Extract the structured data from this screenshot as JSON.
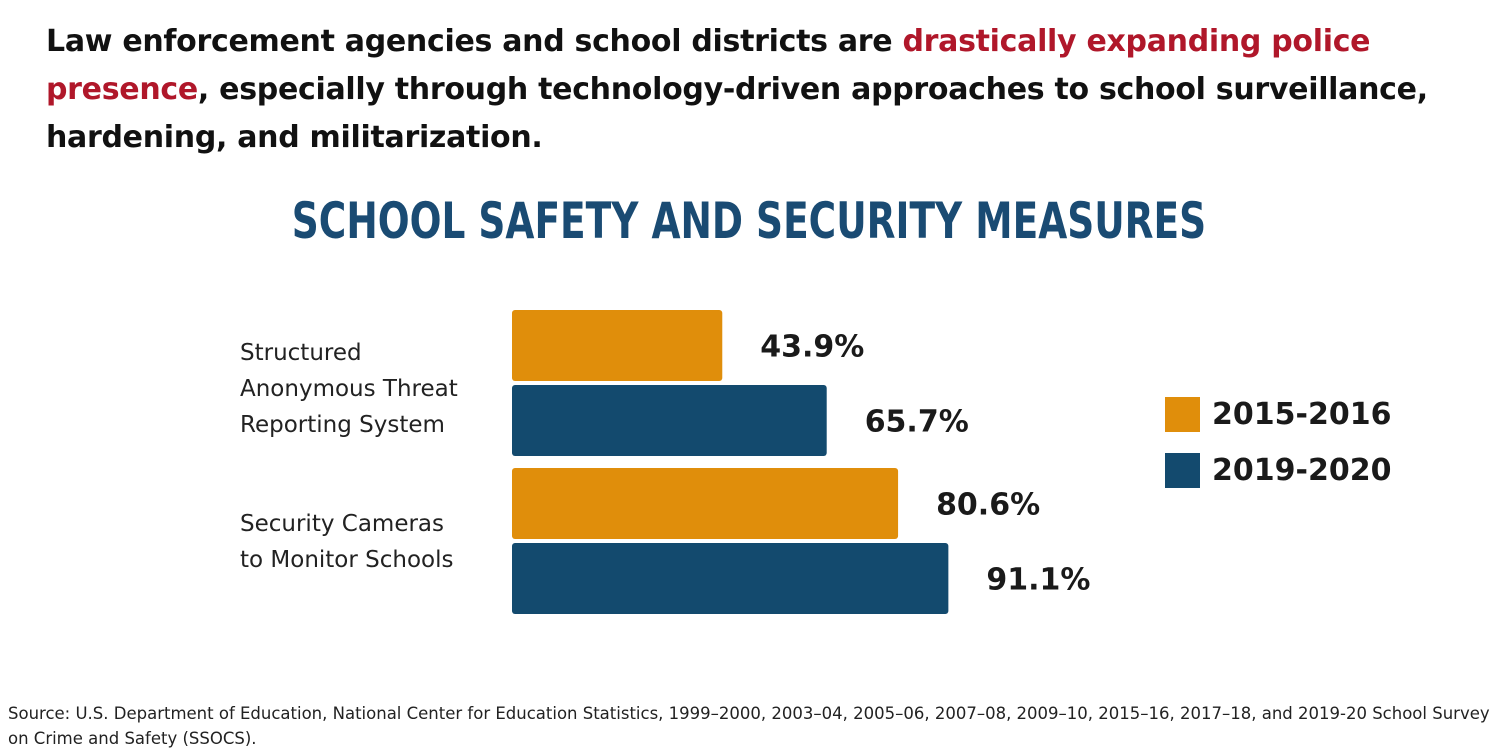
{
  "headline": {
    "part1": "Law enforcement agencies and school districts are ",
    "accent": "drastically expanding police presence",
    "part2": ", especially through technology-driven approaches to school surveillance, hardening, and militarization."
  },
  "colors": {
    "accent_red": "#b0172a",
    "series_2015": "#e08e0b",
    "series_2019": "#134a6e",
    "title_blue": "#1a4b73"
  },
  "chart_data": {
    "type": "bar",
    "orientation": "horizontal",
    "title": "SCHOOL SAFETY AND SECURITY MEASURES",
    "categories": [
      "Structured Anonymous Threat Reporting System",
      "Security Cameras to Monitor Schools"
    ],
    "category_lines": [
      [
        "Structured",
        "Anonymous Threat",
        "Reporting System"
      ],
      [
        "Security Cameras",
        "to Monitor Schools"
      ]
    ],
    "series": [
      {
        "name": "2015-2016",
        "values": [
          43.9,
          80.6
        ],
        "labels": [
          "43.9%",
          "80.6%"
        ]
      },
      {
        "name": "2019-2020",
        "values": [
          65.7,
          91.1
        ],
        "labels": [
          "65.7%",
          "91.1%"
        ]
      }
    ],
    "unit": "%",
    "xlim": [
      0,
      100
    ],
    "grid": false,
    "legend_position": "right",
    "xlabel": "",
    "ylabel": ""
  },
  "source": "Source: U.S. Department of Education, National Center for Education Statistics, 1999–2000, 2003–04, 2005–06, 2007–08, 2009–10, 2015–16, 2017–18, and 2019-20 School Survey on Crime and Safety (SSOCS)."
}
